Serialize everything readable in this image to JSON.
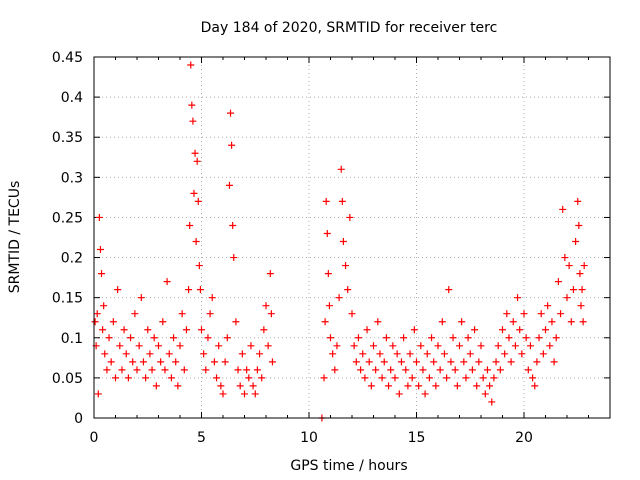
{
  "chart_data": {
    "type": "scatter",
    "title": "Day 184 of 2020, SRMTID for receiver terc",
    "xlabel": "GPS time / hours",
    "ylabel": "SRMTID / TECUs",
    "xlim": [
      0,
      24
    ],
    "ylim": [
      0,
      0.45
    ],
    "grid": true,
    "x_ticks": [
      0,
      5,
      10,
      15,
      20
    ],
    "x_tick_labels": [
      "0",
      "5",
      "10",
      "15",
      "20"
    ],
    "y_ticks": [
      0,
      0.05,
      0.1,
      0.15,
      0.2,
      0.25,
      0.3,
      0.35,
      0.4,
      0.45
    ],
    "y_tick_labels": [
      "0",
      "0.05",
      "0.1",
      "0.15",
      "0.2",
      "0.25",
      "0.3",
      "0.35",
      "0.4",
      "0.45"
    ],
    "marker": "plus",
    "colors": {
      "series": "#ff0000",
      "grid": "#b0b0b0",
      "axis": "#000000"
    },
    "series": [
      {
        "name": "SRMTID",
        "points": [
          [
            0.05,
            0.12
          ],
          [
            0.1,
            0.09
          ],
          [
            0.15,
            0.13
          ],
          [
            0.2,
            0.03
          ],
          [
            0.25,
            0.25
          ],
          [
            0.3,
            0.21
          ],
          [
            0.35,
            0.18
          ],
          [
            0.4,
            0.11
          ],
          [
            0.45,
            0.14
          ],
          [
            0.5,
            0.08
          ],
          [
            0.6,
            0.06
          ],
          [
            0.7,
            0.1
          ],
          [
            0.8,
            0.07
          ],
          [
            0.9,
            0.12
          ],
          [
            1.0,
            0.05
          ],
          [
            1.1,
            0.16
          ],
          [
            1.2,
            0.09
          ],
          [
            1.3,
            0.06
          ],
          [
            1.4,
            0.11
          ],
          [
            1.5,
            0.08
          ],
          [
            1.6,
            0.05
          ],
          [
            1.7,
            0.1
          ],
          [
            1.8,
            0.07
          ],
          [
            1.9,
            0.13
          ],
          [
            2.0,
            0.06
          ],
          [
            2.1,
            0.09
          ],
          [
            2.2,
            0.15
          ],
          [
            2.3,
            0.07
          ],
          [
            2.4,
            0.05
          ],
          [
            2.5,
            0.11
          ],
          [
            2.6,
            0.08
          ],
          [
            2.7,
            0.06
          ],
          [
            2.8,
            0.1
          ],
          [
            2.9,
            0.04
          ],
          [
            3.0,
            0.09
          ],
          [
            3.1,
            0.07
          ],
          [
            3.2,
            0.12
          ],
          [
            3.3,
            0.06
          ],
          [
            3.4,
            0.17
          ],
          [
            3.5,
            0.08
          ],
          [
            3.6,
            0.05
          ],
          [
            3.7,
            0.1
          ],
          [
            3.8,
            0.07
          ],
          [
            3.9,
            0.04
          ],
          [
            4.0,
            0.09
          ],
          [
            4.1,
            0.13
          ],
          [
            4.2,
            0.06
          ],
          [
            4.3,
            0.11
          ],
          [
            4.4,
            0.16
          ],
          [
            4.45,
            0.24
          ],
          [
            4.5,
            0.44
          ],
          [
            4.55,
            0.39
          ],
          [
            4.6,
            0.37
          ],
          [
            4.65,
            0.28
          ],
          [
            4.7,
            0.33
          ],
          [
            4.75,
            0.22
          ],
          [
            4.8,
            0.32
          ],
          [
            4.85,
            0.27
          ],
          [
            4.9,
            0.19
          ],
          [
            4.95,
            0.16
          ],
          [
            5.0,
            0.11
          ],
          [
            5.1,
            0.08
          ],
          [
            5.2,
            0.06
          ],
          [
            5.3,
            0.1
          ],
          [
            5.4,
            0.13
          ],
          [
            5.5,
            0.15
          ],
          [
            5.6,
            0.07
          ],
          [
            5.7,
            0.05
          ],
          [
            5.8,
            0.09
          ],
          [
            5.9,
            0.04
          ],
          [
            6.0,
            0.03
          ],
          [
            6.1,
            0.07
          ],
          [
            6.2,
            0.1
          ],
          [
            6.3,
            0.29
          ],
          [
            6.35,
            0.38
          ],
          [
            6.4,
            0.34
          ],
          [
            6.45,
            0.24
          ],
          [
            6.5,
            0.2
          ],
          [
            6.6,
            0.12
          ],
          [
            6.7,
            0.06
          ],
          [
            6.8,
            0.04
          ],
          [
            6.9,
            0.08
          ],
          [
            7.0,
            0.03
          ],
          [
            7.1,
            0.06
          ],
          [
            7.2,
            0.05
          ],
          [
            7.3,
            0.09
          ],
          [
            7.4,
            0.04
          ],
          [
            7.5,
            0.03
          ],
          [
            7.6,
            0.06
          ],
          [
            7.7,
            0.08
          ],
          [
            7.8,
            0.05
          ],
          [
            7.9,
            0.11
          ],
          [
            8.0,
            0.14
          ],
          [
            8.1,
            0.09
          ],
          [
            8.2,
            0.18
          ],
          [
            8.25,
            0.13
          ],
          [
            8.3,
            0.07
          ],
          [
            10.6,
            0.0
          ],
          [
            10.7,
            0.05
          ],
          [
            10.75,
            0.12
          ],
          [
            10.8,
            0.27
          ],
          [
            10.85,
            0.23
          ],
          [
            10.9,
            0.18
          ],
          [
            10.95,
            0.14
          ],
          [
            11.0,
            0.1
          ],
          [
            11.1,
            0.08
          ],
          [
            11.2,
            0.06
          ],
          [
            11.3,
            0.09
          ],
          [
            11.4,
            0.15
          ],
          [
            11.5,
            0.31
          ],
          [
            11.55,
            0.27
          ],
          [
            11.6,
            0.22
          ],
          [
            11.7,
            0.19
          ],
          [
            11.8,
            0.16
          ],
          [
            11.9,
            0.25
          ],
          [
            12.0,
            0.13
          ],
          [
            12.1,
            0.09
          ],
          [
            12.2,
            0.07
          ],
          [
            12.3,
            0.1
          ],
          [
            12.4,
            0.06
          ],
          [
            12.5,
            0.08
          ],
          [
            12.6,
            0.05
          ],
          [
            12.7,
            0.11
          ],
          [
            12.8,
            0.07
          ],
          [
            12.9,
            0.04
          ],
          [
            13.0,
            0.09
          ],
          [
            13.1,
            0.06
          ],
          [
            13.2,
            0.12
          ],
          [
            13.3,
            0.08
          ],
          [
            13.4,
            0.05
          ],
          [
            13.5,
            0.07
          ],
          [
            13.6,
            0.1
          ],
          [
            13.7,
            0.04
          ],
          [
            13.8,
            0.06
          ],
          [
            13.9,
            0.09
          ],
          [
            14.0,
            0.05
          ],
          [
            14.1,
            0.08
          ],
          [
            14.2,
            0.03
          ],
          [
            14.3,
            0.07
          ],
          [
            14.4,
            0.1
          ],
          [
            14.5,
            0.06
          ],
          [
            14.6,
            0.04
          ],
          [
            14.7,
            0.08
          ],
          [
            14.8,
            0.05
          ],
          [
            14.9,
            0.11
          ],
          [
            15.0,
            0.07
          ],
          [
            15.1,
            0.04
          ],
          [
            15.2,
            0.09
          ],
          [
            15.3,
            0.06
          ],
          [
            15.4,
            0.03
          ],
          [
            15.5,
            0.08
          ],
          [
            15.6,
            0.05
          ],
          [
            15.7,
            0.1
          ],
          [
            15.8,
            0.07
          ],
          [
            15.9,
            0.04
          ],
          [
            16.0,
            0.09
          ],
          [
            16.1,
            0.06
          ],
          [
            16.2,
            0.12
          ],
          [
            16.3,
            0.08
          ],
          [
            16.4,
            0.05
          ],
          [
            16.5,
            0.16
          ],
          [
            16.6,
            0.07
          ],
          [
            16.7,
            0.1
          ],
          [
            16.8,
            0.06
          ],
          [
            16.9,
            0.04
          ],
          [
            17.0,
            0.09
          ],
          [
            17.1,
            0.12
          ],
          [
            17.2,
            0.07
          ],
          [
            17.3,
            0.05
          ],
          [
            17.4,
            0.1
          ],
          [
            17.5,
            0.08
          ],
          [
            17.6,
            0.06
          ],
          [
            17.7,
            0.11
          ],
          [
            17.8,
            0.04
          ],
          [
            17.9,
            0.07
          ],
          [
            18.0,
            0.09
          ],
          [
            18.1,
            0.05
          ],
          [
            18.2,
            0.03
          ],
          [
            18.3,
            0.06
          ],
          [
            18.4,
            0.04
          ],
          [
            18.5,
            0.02
          ],
          [
            18.6,
            0.05
          ],
          [
            18.7,
            0.07
          ],
          [
            18.8,
            0.09
          ],
          [
            18.9,
            0.06
          ],
          [
            19.0,
            0.11
          ],
          [
            19.1,
            0.08
          ],
          [
            19.2,
            0.13
          ],
          [
            19.3,
            0.1
          ],
          [
            19.4,
            0.07
          ],
          [
            19.5,
            0.12
          ],
          [
            19.6,
            0.09
          ],
          [
            19.7,
            0.15
          ],
          [
            19.8,
            0.11
          ],
          [
            19.9,
            0.08
          ],
          [
            20.0,
            0.13
          ],
          [
            20.1,
            0.1
          ],
          [
            20.2,
            0.06
          ],
          [
            20.3,
            0.09
          ],
          [
            20.4,
            0.05
          ],
          [
            20.5,
            0.04
          ],
          [
            20.6,
            0.07
          ],
          [
            20.7,
            0.1
          ],
          [
            20.8,
            0.13
          ],
          [
            20.9,
            0.08
          ],
          [
            21.0,
            0.11
          ],
          [
            21.1,
            0.14
          ],
          [
            21.2,
            0.09
          ],
          [
            21.3,
            0.12
          ],
          [
            21.4,
            0.07
          ],
          [
            21.5,
            0.1
          ],
          [
            21.6,
            0.17
          ],
          [
            21.7,
            0.13
          ],
          [
            21.8,
            0.26
          ],
          [
            21.9,
            0.2
          ],
          [
            22.0,
            0.15
          ],
          [
            22.1,
            0.19
          ],
          [
            22.2,
            0.12
          ],
          [
            22.3,
            0.16
          ],
          [
            22.4,
            0.22
          ],
          [
            22.5,
            0.27
          ],
          [
            22.55,
            0.24
          ],
          [
            22.6,
            0.18
          ],
          [
            22.65,
            0.14
          ],
          [
            22.7,
            0.16
          ],
          [
            22.75,
            0.12
          ],
          [
            22.8,
            0.19
          ]
        ]
      }
    ]
  }
}
